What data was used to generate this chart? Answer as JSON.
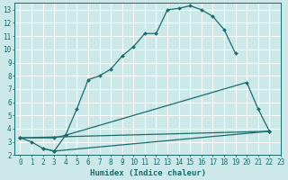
{
  "xlabel": "Humidex (Indice chaleur)",
  "bg_color": "#cce8e8",
  "grid_color": "#ffffff",
  "line_color": "#1a6b6b",
  "xlim": [
    -0.5,
    23
  ],
  "ylim": [
    2,
    13.5
  ],
  "xticks": [
    0,
    1,
    2,
    3,
    4,
    5,
    6,
    7,
    8,
    9,
    10,
    11,
    12,
    13,
    14,
    15,
    16,
    17,
    18,
    19,
    20,
    21,
    22,
    23
  ],
  "yticks": [
    2,
    3,
    4,
    5,
    6,
    7,
    8,
    9,
    10,
    11,
    12,
    13
  ],
  "curve1_x": [
    0,
    1,
    2,
    3,
    4,
    5,
    6,
    7,
    8,
    9,
    10,
    11,
    12,
    13,
    14,
    15,
    16,
    17,
    18,
    19
  ],
  "curve1_y": [
    3.3,
    3.0,
    2.5,
    2.3,
    3.5,
    5.5,
    7.7,
    8.0,
    8.5,
    9.5,
    10.2,
    11.2,
    11.2,
    13.0,
    13.1,
    13.3,
    13.0,
    12.5,
    11.5,
    9.7
  ],
  "curve2_x": [
    0,
    3,
    4,
    20,
    21,
    22
  ],
  "curve2_y": [
    3.3,
    3.3,
    3.5,
    7.5,
    5.5,
    3.8
  ],
  "curve3_x": [
    0,
    22
  ],
  "curve3_y": [
    3.3,
    3.8
  ],
  "curve4_x": [
    2,
    3,
    22
  ],
  "curve4_y": [
    2.5,
    2.3,
    3.8
  ]
}
